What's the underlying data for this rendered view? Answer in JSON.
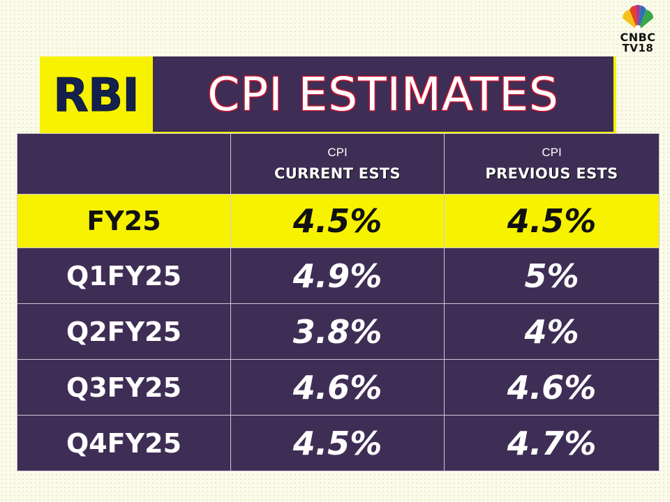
{
  "logo": {
    "line1": "CNBC",
    "line2": "TV18"
  },
  "title": {
    "prefix": "RBI",
    "main": "CPI ESTIMATES"
  },
  "colors": {
    "highlight": "#f7f200",
    "panel": "#3e2e55",
    "rbi_text": "#14214d",
    "title_outline": "#e0122d"
  },
  "chart_data": {
    "type": "table",
    "columns": [
      {
        "top": "",
        "bottom": ""
      },
      {
        "top": "CPI",
        "bottom": "CURRENT ESTS"
      },
      {
        "top": "CPI",
        "bottom": "PREVIOUS ESTS"
      }
    ],
    "rows": [
      {
        "period": "FY25",
        "current": "4.5%",
        "previous": "4.5%",
        "highlight": true
      },
      {
        "period": "Q1FY25",
        "current": "4.9%",
        "previous": "5%",
        "highlight": false
      },
      {
        "period": "Q2FY25",
        "current": "3.8%",
        "previous": "4%",
        "highlight": false
      },
      {
        "period": "Q3FY25",
        "current": "4.6%",
        "previous": "4.6%",
        "highlight": false
      },
      {
        "period": "Q4FY25",
        "current": "4.5%",
        "previous": "4.7%",
        "highlight": false
      }
    ]
  }
}
